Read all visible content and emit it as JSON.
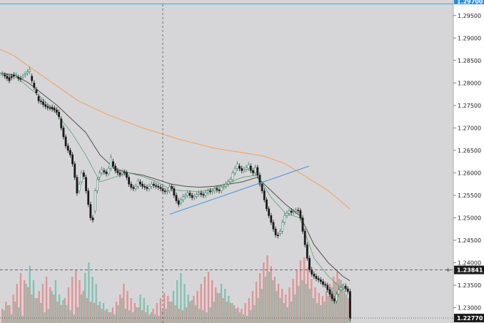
{
  "colors": {
    "background": "#d6d6d9",
    "axis_panel": "#ffffff",
    "bull": "#3c7a60",
    "bear": "#1a1a1a",
    "volume_up": "#6fbfa8",
    "volume_down": "#e58686",
    "ma_slow": "#f0a868",
    "ma_mid": "#505050",
    "ma_fast": "#5b9e6a",
    "trendline": "#5b9bd5",
    "grid_line": "#555555",
    "badge_bg": "#1a1a1a",
    "top_badge": "#2f8ad8"
  },
  "chart_data": {
    "type": "candlestick",
    "y_axis": {
      "position": "right",
      "ticks": [
        "1.29500",
        "1.29000",
        "1.28500",
        "1.28000",
        "1.27500",
        "1.27000",
        "1.26500",
        "1.26000",
        "1.25500",
        "1.25000",
        "1.24500",
        "1.24000",
        "1.23500",
        "1.23000"
      ],
      "range": [
        1.2266,
        1.2975
      ]
    },
    "top_badge": "1.29700",
    "price_markers": [
      {
        "label": "1.23841",
        "value": 1.23841,
        "style": "dashed"
      },
      {
        "label": "1.22770",
        "value": 1.2277,
        "style": "dotted"
      }
    ],
    "crosshair": {
      "icon": "plus-icon"
    },
    "series": [
      {
        "name": "",
        "values": [
          1.282,
          1.2818,
          1.2815,
          1.2812,
          1.2815,
          1.2818,
          1.2816,
          1.2813,
          1.281,
          1.2812,
          1.2818,
          1.2822,
          1.2825,
          1.2815,
          1.28,
          1.2785,
          1.277,
          1.276,
          1.2758,
          1.2752,
          1.2748,
          1.2745,
          1.2746,
          1.2744,
          1.274,
          1.2735,
          1.272,
          1.27,
          1.268,
          1.266,
          1.265,
          1.264,
          1.262,
          1.259,
          1.256,
          1.258,
          1.26,
          1.259,
          1.256,
          1.253,
          1.25,
          1.2515,
          1.256,
          1.259,
          1.26,
          1.2605,
          1.2602,
          1.2598,
          1.261,
          1.2625,
          1.2615,
          1.2605,
          1.26,
          1.2598,
          1.2602,
          1.26,
          1.259,
          1.2575,
          1.2568,
          1.2565,
          1.257,
          1.258,
          1.2575,
          1.257,
          1.2568,
          1.2565,
          1.257,
          1.2575,
          1.2572,
          1.257,
          1.2568,
          1.2565,
          1.256,
          1.2558,
          1.256,
          1.257,
          1.2565,
          1.255,
          1.2538,
          1.2533,
          1.254,
          1.2547,
          1.255,
          1.2555,
          1.255,
          1.2545,
          1.2548,
          1.2552,
          1.2555,
          1.2552,
          1.255,
          1.2556,
          1.256,
          1.2558,
          1.256,
          1.2565,
          1.2562,
          1.256,
          1.2568,
          1.257,
          1.2575,
          1.258,
          1.2585,
          1.26,
          1.261,
          1.2615,
          1.261,
          1.2605,
          1.2608,
          1.261,
          1.2615,
          1.2605,
          1.26,
          1.2612,
          1.2595,
          1.2575,
          1.256,
          1.254,
          1.252,
          1.2505,
          1.249,
          1.2475,
          1.2462,
          1.2465,
          1.247,
          1.249,
          1.2505,
          1.251,
          1.2515,
          1.2512,
          1.2514,
          1.2517,
          1.2516,
          1.25,
          1.247,
          1.244,
          1.241,
          1.2385,
          1.2375,
          1.237,
          1.2365,
          1.2362,
          1.2358,
          1.2352,
          1.235,
          1.234,
          1.233,
          1.232,
          1.2315,
          1.233,
          1.234,
          1.2345,
          1.2348,
          1.2342,
          1.2336,
          1.2337
        ]
      },
      {
        "name": "",
        "values": [
          1.282,
          1.2815,
          1.281,
          1.2805,
          1.2812,
          1.2815,
          1.2818,
          1.281,
          1.2808,
          1.2815,
          1.282,
          1.2825,
          1.283,
          1.2805,
          1.279,
          1.2778,
          1.276,
          1.2758,
          1.2752,
          1.2748,
          1.2745,
          1.2744,
          1.2742,
          1.274,
          1.2735,
          1.2725,
          1.27,
          1.268,
          1.266,
          1.265,
          1.264,
          1.262,
          1.259,
          1.2555,
          1.2575,
          1.26,
          1.2592,
          1.256,
          1.253,
          1.25,
          1.2495,
          1.256,
          1.2585,
          1.26,
          1.2608,
          1.2602,
          1.2598,
          1.261,
          1.2635,
          1.2615,
          1.2605,
          1.26,
          1.2596,
          1.2602,
          1.26,
          1.259,
          1.2575,
          1.2568,
          1.2565,
          1.257,
          1.2582,
          1.2575,
          1.257,
          1.2568,
          1.2565,
          1.257,
          1.2575,
          1.2572,
          1.257,
          1.2568,
          1.2565,
          1.256,
          1.2558,
          1.256,
          1.257,
          1.2565,
          1.255,
          1.2538,
          1.253,
          1.254,
          1.2547,
          1.255,
          1.2555,
          1.255,
          1.2545,
          1.2548,
          1.2552,
          1.2555,
          1.2552,
          1.255,
          1.2556,
          1.256,
          1.2558,
          1.256,
          1.2565,
          1.2562,
          1.256,
          1.2568,
          1.257,
          1.2575,
          1.258,
          1.2585,
          1.26,
          1.261,
          1.262,
          1.261,
          1.2605,
          1.2608,
          1.2612,
          1.2618,
          1.2605,
          1.26,
          1.2612,
          1.2595,
          1.2575,
          1.256,
          1.254,
          1.252,
          1.2505,
          1.249,
          1.2475,
          1.2462,
          1.246,
          1.247,
          1.249,
          1.2505,
          1.251,
          1.2515,
          1.2512,
          1.2514,
          1.2517,
          1.2516,
          1.25,
          1.247,
          1.244,
          1.241,
          1.2385,
          1.2375,
          1.237,
          1.2365,
          1.2362,
          1.2358,
          1.2352,
          1.235,
          1.234,
          1.233,
          1.232,
          1.2315,
          1.233,
          1.234,
          1.2345,
          1.2348,
          1.2342,
          1.2336,
          1.2277
        ]
      }
    ],
    "moving_averages": {
      "slow": [
        [
          0,
          1.2875
        ],
        [
          20,
          1.286
        ],
        [
          60,
          1.2815
        ],
        [
          110,
          1.276
        ],
        [
          150,
          1.273
        ],
        [
          200,
          1.27
        ],
        [
          250,
          1.2675
        ],
        [
          300,
          1.2655
        ],
        [
          340,
          1.2645
        ],
        [
          370,
          1.2637
        ],
        [
          400,
          1.262
        ],
        [
          430,
          1.259
        ],
        [
          460,
          1.256
        ],
        [
          490,
          1.252
        ]
      ],
      "mid": [
        [
          0,
          1.2822
        ],
        [
          20,
          1.2818
        ],
        [
          40,
          1.28
        ],
        [
          60,
          1.2775
        ],
        [
          80,
          1.275
        ],
        [
          100,
          1.272
        ],
        [
          120,
          1.269
        ],
        [
          140,
          1.264
        ],
        [
          160,
          1.261
        ],
        [
          180,
          1.26
        ],
        [
          200,
          1.2595
        ],
        [
          220,
          1.2585
        ],
        [
          240,
          1.2575
        ],
        [
          260,
          1.257
        ],
        [
          280,
          1.2568
        ],
        [
          300,
          1.257
        ],
        [
          320,
          1.2575
        ],
        [
          340,
          1.258
        ],
        [
          360,
          1.259
        ],
        [
          380,
          1.256
        ],
        [
          400,
          1.253
        ],
        [
          420,
          1.2505
        ],
        [
          440,
          1.244
        ],
        [
          460,
          1.24
        ],
        [
          480,
          1.237
        ],
        [
          490,
          1.236
        ]
      ],
      "fast": [
        [
          0,
          1.2818
        ],
        [
          20,
          1.2818
        ],
        [
          40,
          1.279
        ],
        [
          60,
          1.2765
        ],
        [
          80,
          1.273
        ],
        [
          100,
          1.269
        ],
        [
          120,
          1.264
        ],
        [
          140,
          1.258
        ],
        [
          160,
          1.259
        ],
        [
          180,
          1.26
        ],
        [
          200,
          1.2592
        ],
        [
          220,
          1.258
        ],
        [
          240,
          1.2562
        ],
        [
          260,
          1.256
        ],
        [
          280,
          1.2558
        ],
        [
          300,
          1.2565
        ],
        [
          320,
          1.2578
        ],
        [
          340,
          1.259
        ],
        [
          360,
          1.2595
        ],
        [
          380,
          1.2545
        ],
        [
          400,
          1.251
        ],
        [
          420,
          1.25
        ],
        [
          440,
          1.241
        ],
        [
          460,
          1.237
        ],
        [
          480,
          1.234
        ]
      ]
    },
    "trendline": [
      [
        238,
        1.2508
      ],
      [
        433,
        1.2615
      ]
    ],
    "volume": {
      "up": [
        0.18,
        0.25,
        0.12,
        0.3,
        0.22,
        0.1,
        0.55,
        0.8,
        0.6,
        0.35,
        0.28,
        0.15,
        0.2,
        0.45,
        0.6,
        0.4,
        0.32,
        0.25,
        0.18,
        0.12,
        0.22,
        0.4,
        0.7,
        0.85,
        0.65,
        0.55,
        0.3,
        0.28,
        0.2,
        0.15,
        0.12,
        0.25,
        0.35,
        0.2,
        0.18,
        0.15,
        0.22,
        0.4,
        0.35,
        0.25,
        0.15,
        0.12,
        0.1,
        0.18,
        0.2,
        0.3,
        0.45,
        0.6,
        0.7,
        0.55,
        0.4,
        0.32,
        0.25,
        0.2,
        0.18,
        0.15,
        0.22,
        0.3,
        0.42,
        0.55,
        0.48,
        0.38,
        0.28,
        0.2,
        0.15,
        0.12,
        0.1,
        0.18,
        0.25,
        0.35,
        0.48,
        0.65,
        0.72,
        0.6,
        0.45,
        0.35,
        0.28,
        0.22,
        0.3,
        0.4,
        0.52,
        0.6,
        0.55,
        0.48,
        0.35,
        0.28,
        0.25,
        0.3,
        0.38,
        0.5,
        0.58,
        0.62,
        0.55,
        0.4,
        0.3
      ],
      "down": [
        0.2,
        0.3,
        0.25,
        0.4,
        0.55,
        0.7,
        0.6,
        0.5,
        0.4,
        0.35,
        0.45,
        0.55,
        0.65,
        0.5,
        0.4,
        0.3,
        0.25,
        0.35,
        0.5,
        0.65,
        0.75,
        0.6,
        0.45,
        0.35,
        0.3,
        0.28,
        0.25,
        0.2,
        0.18,
        0.15,
        0.22,
        0.3,
        0.4,
        0.55,
        0.45,
        0.35,
        0.28,
        0.22,
        0.18,
        0.15,
        0.12,
        0.2,
        0.28,
        0.35,
        0.42,
        0.38,
        0.3,
        0.25,
        0.2,
        0.18,
        0.22,
        0.3,
        0.38,
        0.45,
        0.55,
        0.65,
        0.72,
        0.6,
        0.5,
        0.42,
        0.35,
        0.3,
        0.28,
        0.25,
        0.22,
        0.2,
        0.28,
        0.35,
        0.45,
        0.58,
        0.7,
        0.85,
        0.95,
        0.8,
        0.65,
        0.55,
        0.48,
        0.4,
        0.5,
        0.62,
        0.75,
        0.88,
        0.92,
        0.78,
        0.62,
        0.5,
        0.42,
        0.38,
        0.45,
        0.55,
        0.65,
        0.72,
        0.6,
        0.45,
        0.35
      ]
    }
  }
}
